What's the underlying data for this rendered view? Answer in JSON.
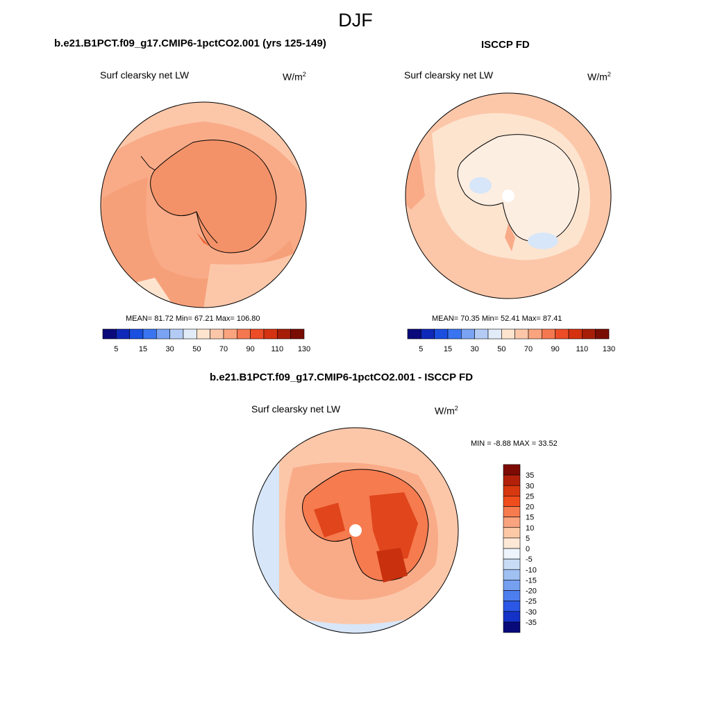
{
  "season": "DJF",
  "panels": {
    "model": {
      "title": "b.e21.B1PCT.f09_g17.CMIP6-1pctCO2.001 (yrs 125-149)",
      "variable": "Surf clearsky net LW",
      "units": "W/m",
      "units_sup": "2",
      "stats": "MEAN=  81.72  Min=  67.21  Max= 106.80"
    },
    "obs": {
      "title": "ISCCP FD",
      "variable": "Surf clearsky net LW",
      "units": "W/m",
      "units_sup": "2",
      "stats": "MEAN=  70.35  Min=  52.41  Max=  87.41"
    },
    "diff": {
      "title": "b.e21.B1PCT.f09_g17.CMIP6-1pctCO2.001 - ISCCP FD",
      "variable": "Surf clearsky net LW",
      "units": "W/m",
      "units_sup": "2",
      "stats": "MIN =  -8.88 MAX =  33.52"
    }
  },
  "abs_colorbar": {
    "tick_labels": [
      "5",
      "15",
      "30",
      "50",
      "70",
      "90",
      "110",
      "130"
    ],
    "colors": [
      "#0a0a7a",
      "#0f29b8",
      "#1a4fe0",
      "#3a74f0",
      "#7aa3f3",
      "#b4ccf5",
      "#e2ecf8",
      "#fde4cf",
      "#fcc7a9",
      "#f9a47e",
      "#f4784f",
      "#ec4d26",
      "#d43210",
      "#a61d08",
      "#7a0d02"
    ]
  },
  "diff_colorbar": {
    "labels_top_to_bottom": [
      "35",
      "30",
      "25",
      "20",
      "15",
      "10",
      "5",
      "0",
      "-5",
      "-10",
      "-15",
      "-20",
      "-25",
      "-30",
      "-35"
    ],
    "colors_top_to_bottom": [
      "#7e0a04",
      "#b3200a",
      "#d8380f",
      "#f04d1c",
      "#f67b4f",
      "#f9a47e",
      "#fcc9a6",
      "#fde8d6",
      "#eef4fb",
      "#c8dcf5",
      "#a0c0f2",
      "#769ff0",
      "#4d7ef0",
      "#2a57e6",
      "#1432c8",
      "#080a7a"
    ]
  },
  "colors": {
    "model_base": "#f9ab88",
    "model_dark": "#f08a62",
    "obs_base": "#fcc7a9",
    "obs_light": "#fde4cf",
    "obs_pale_blue": "#d7e6f8",
    "diff_base": "#fcc7a9",
    "diff_mid": "#f67b4f",
    "diff_dark": "#e0451c",
    "diff_blue": "#d7e6f8"
  }
}
